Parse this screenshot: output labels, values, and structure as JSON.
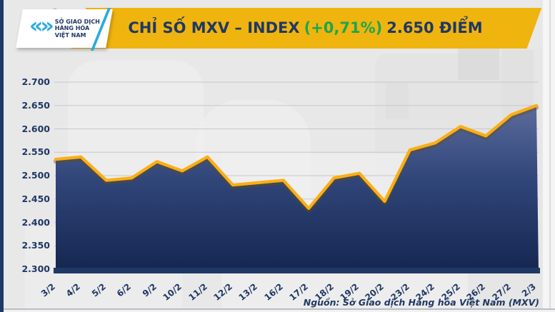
{
  "header": {
    "logo": {
      "mark": "«»",
      "tm": "™",
      "lines": [
        "SỞ GIAO DỊCH",
        "HÀNG HÓA",
        "VIỆT NAM"
      ]
    },
    "title": {
      "main": "CHỈ SỐ MXV – INDEX",
      "change": "(+0,71%)",
      "value": "2.650 ĐIỂM"
    }
  },
  "footer": {
    "source": "Nguồn: Sở Giao dịch Hàng hóa Việt Nam (MXV)"
  },
  "colors": {
    "banner_gold": "#F0B40F",
    "navy": "#1F3864",
    "green": "#1CA64E",
    "cyan": "#29ABE2",
    "line_gold": "#FBAE15",
    "line_shadow": "rgba(105,80,10,0.38)",
    "grid": "#C5C8CE",
    "fill_top": "#5E6E9E",
    "fill_mid": "#31467A",
    "fill_bottom": "#152750",
    "background": "#E8E8E8"
  },
  "chart_data": {
    "type": "area",
    "title": "CHỈ SỐ MXV – INDEX (+0,71%) 2.650 ĐIỂM",
    "xlabel": "",
    "ylabel": "",
    "grid": true,
    "legend": "none",
    "categories": [
      "3/2",
      "4/2",
      "5/2",
      "6/2",
      "9/2",
      "10/2",
      "11/2",
      "12/2",
      "13/2",
      "16/2",
      "17/2",
      "18/2",
      "19/2",
      "20/2",
      "23/2",
      "24/2",
      "25/2",
      "26/2",
      "27/2",
      "2/3"
    ],
    "values": [
      2535,
      2540,
      2490,
      2495,
      2530,
      2510,
      2540,
      2480,
      2485,
      2490,
      2430,
      2495,
      2505,
      2445,
      2555,
      2570,
      2605,
      2585,
      2630,
      2650
    ],
    "ylim": [
      2300,
      2700
    ],
    "y_ticks": [
      {
        "value": 2700,
        "label": "2.700"
      },
      {
        "value": 2650,
        "label": "2.650"
      },
      {
        "value": 2600,
        "label": "2.600"
      },
      {
        "value": 2550,
        "label": "2.550"
      },
      {
        "value": 2500,
        "label": "2.500"
      },
      {
        "value": 2450,
        "label": "2.450"
      },
      {
        "value": 2400,
        "label": "2.400"
      },
      {
        "value": 2350,
        "label": "2.350"
      },
      {
        "value": 2300,
        "label": "2.300"
      }
    ]
  }
}
